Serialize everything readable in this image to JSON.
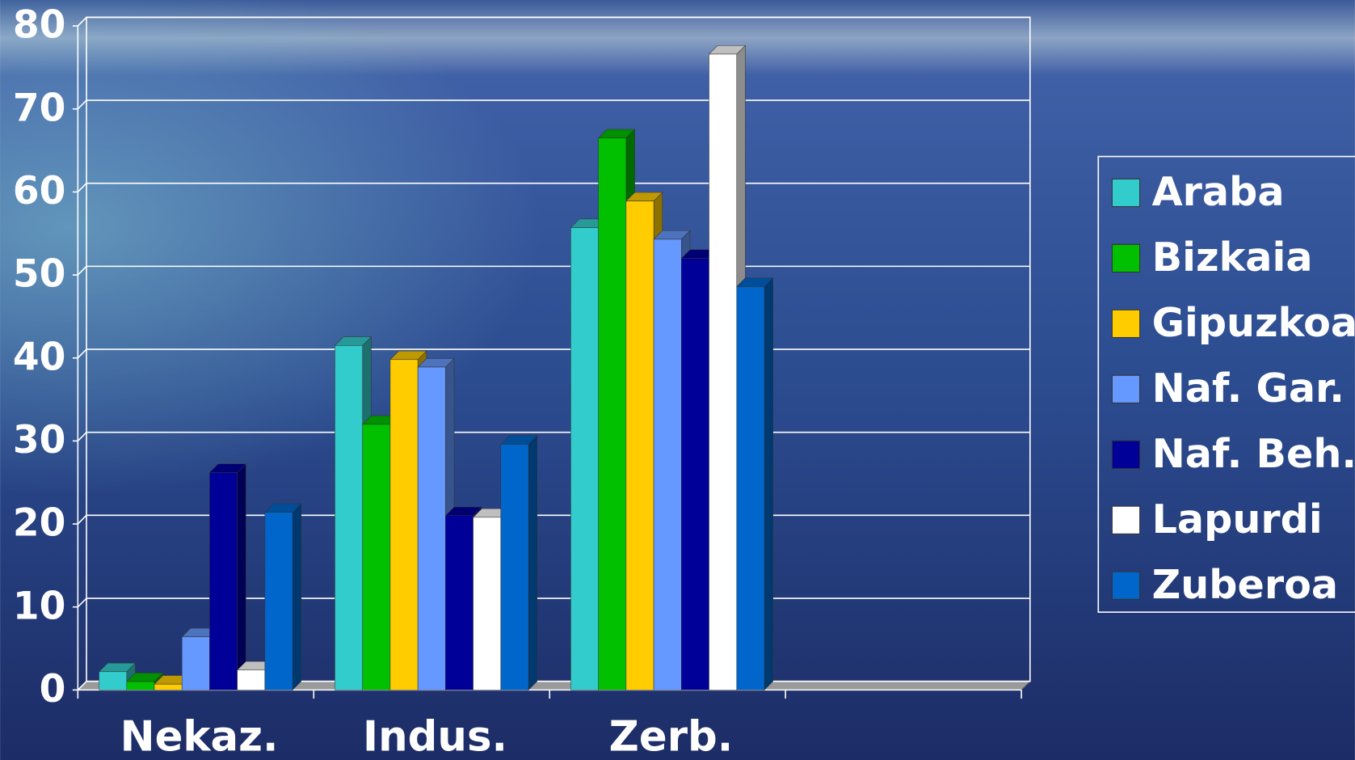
{
  "chart_data": {
    "type": "bar3d",
    "categories": [
      "Nekaz.",
      "Indus.",
      "Zerb.",
      null
    ],
    "series": [
      {
        "name": "Araba",
        "color": "#33cccc",
        "values": [
          2.2,
          41.5,
          55.7,
          null
        ]
      },
      {
        "name": "Bizkaia",
        "color": "#00c000",
        "values": [
          1,
          32,
          66.5,
          null
        ]
      },
      {
        "name": "Gipuzkoa",
        "color": "#ffcc00",
        "values": [
          0.7,
          39.8,
          58.9,
          null
        ]
      },
      {
        "name": "Naf. Gar.",
        "color": "#6699ff",
        "values": [
          6.4,
          38.9,
          54.3,
          null
        ]
      },
      {
        "name": "Naf. Beh.",
        "color": "#000099",
        "values": [
          26.2,
          21,
          52,
          null
        ]
      },
      {
        "name": "Lapurdi",
        "color": "#ffffff",
        "values": [
          2.4,
          20.8,
          76.6,
          null
        ]
      },
      {
        "name": "Zuberoa",
        "color": "#0066cc",
        "values": [
          21.4,
          29.6,
          48.6,
          null
        ]
      }
    ],
    "ylim": [
      0,
      80
    ],
    "yticks": [
      0,
      10,
      20,
      30,
      40,
      50,
      60,
      70,
      80
    ],
    "grid": true,
    "legend": "right"
  }
}
